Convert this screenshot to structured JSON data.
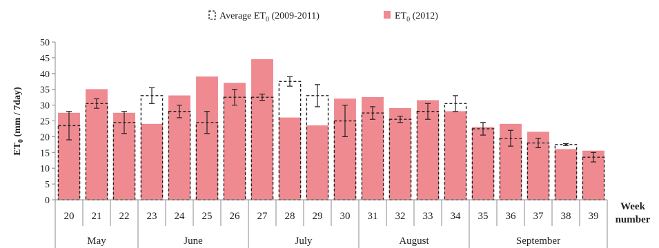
{
  "chart_data": {
    "type": "bar",
    "legend": {
      "placement": "top-center",
      "average_label_prefix": "Average ET",
      "average_label_suffix": " (2009-2011)",
      "current_label_prefix": "ET",
      "current_label_suffix": " (2012)",
      "subscript": "0"
    },
    "ylabel": "ET",
    "ylabel_subscript": "0",
    "ylabel_suffix": " (mm / 7day)",
    "xlabel_line1": "Week",
    "xlabel_line2": "number",
    "ylim": [
      0,
      50
    ],
    "yticks": [
      "0",
      "5",
      "10",
      "15",
      "20",
      "25",
      "30",
      "35",
      "40",
      "45",
      "50"
    ],
    "categories": [
      "20",
      "21",
      "22",
      "23",
      "24",
      "25",
      "26",
      "27",
      "28",
      "29",
      "30",
      "31",
      "32",
      "33",
      "34",
      "35",
      "36",
      "37",
      "38",
      "39"
    ],
    "months": [
      {
        "name": "May",
        "start": 0,
        "count": 3
      },
      {
        "name": "June",
        "start": 3,
        "count": 4
      },
      {
        "name": "July",
        "start": 7,
        "count": 4
      },
      {
        "name": "August",
        "start": 11,
        "count": 4
      },
      {
        "name": "September",
        "start": 15,
        "count": 5
      }
    ],
    "series": [
      {
        "name": "ET0 (2012)",
        "style": "filled",
        "values": [
          27.5,
          35,
          27.5,
          24,
          33,
          39,
          37,
          44.5,
          26,
          23.5,
          32,
          32.5,
          29,
          31.5,
          28,
          23,
          24,
          21.5,
          16,
          15.5
        ]
      },
      {
        "name": "Average ET0 (2009-2011)",
        "style": "dashed-outline",
        "values": [
          23.5,
          30.5,
          24.5,
          33,
          28,
          24.5,
          32.5,
          32.5,
          37.5,
          33,
          25,
          27.5,
          25.5,
          28,
          30.5,
          22.5,
          19.5,
          18,
          17.5,
          13.5
        ],
        "error": [
          4.5,
          1.5,
          3.5,
          2.5,
          2,
          3.5,
          2.5,
          1,
          1.5,
          3.5,
          5,
          2,
          1,
          2.5,
          2.5,
          2,
          2.5,
          1.5,
          0.3,
          1.5
        ]
      }
    ],
    "colors": {
      "bar_fill": "#f08a91",
      "bar_stroke": "#e37d84",
      "outline": "#222222",
      "grid": "#888888"
    }
  }
}
